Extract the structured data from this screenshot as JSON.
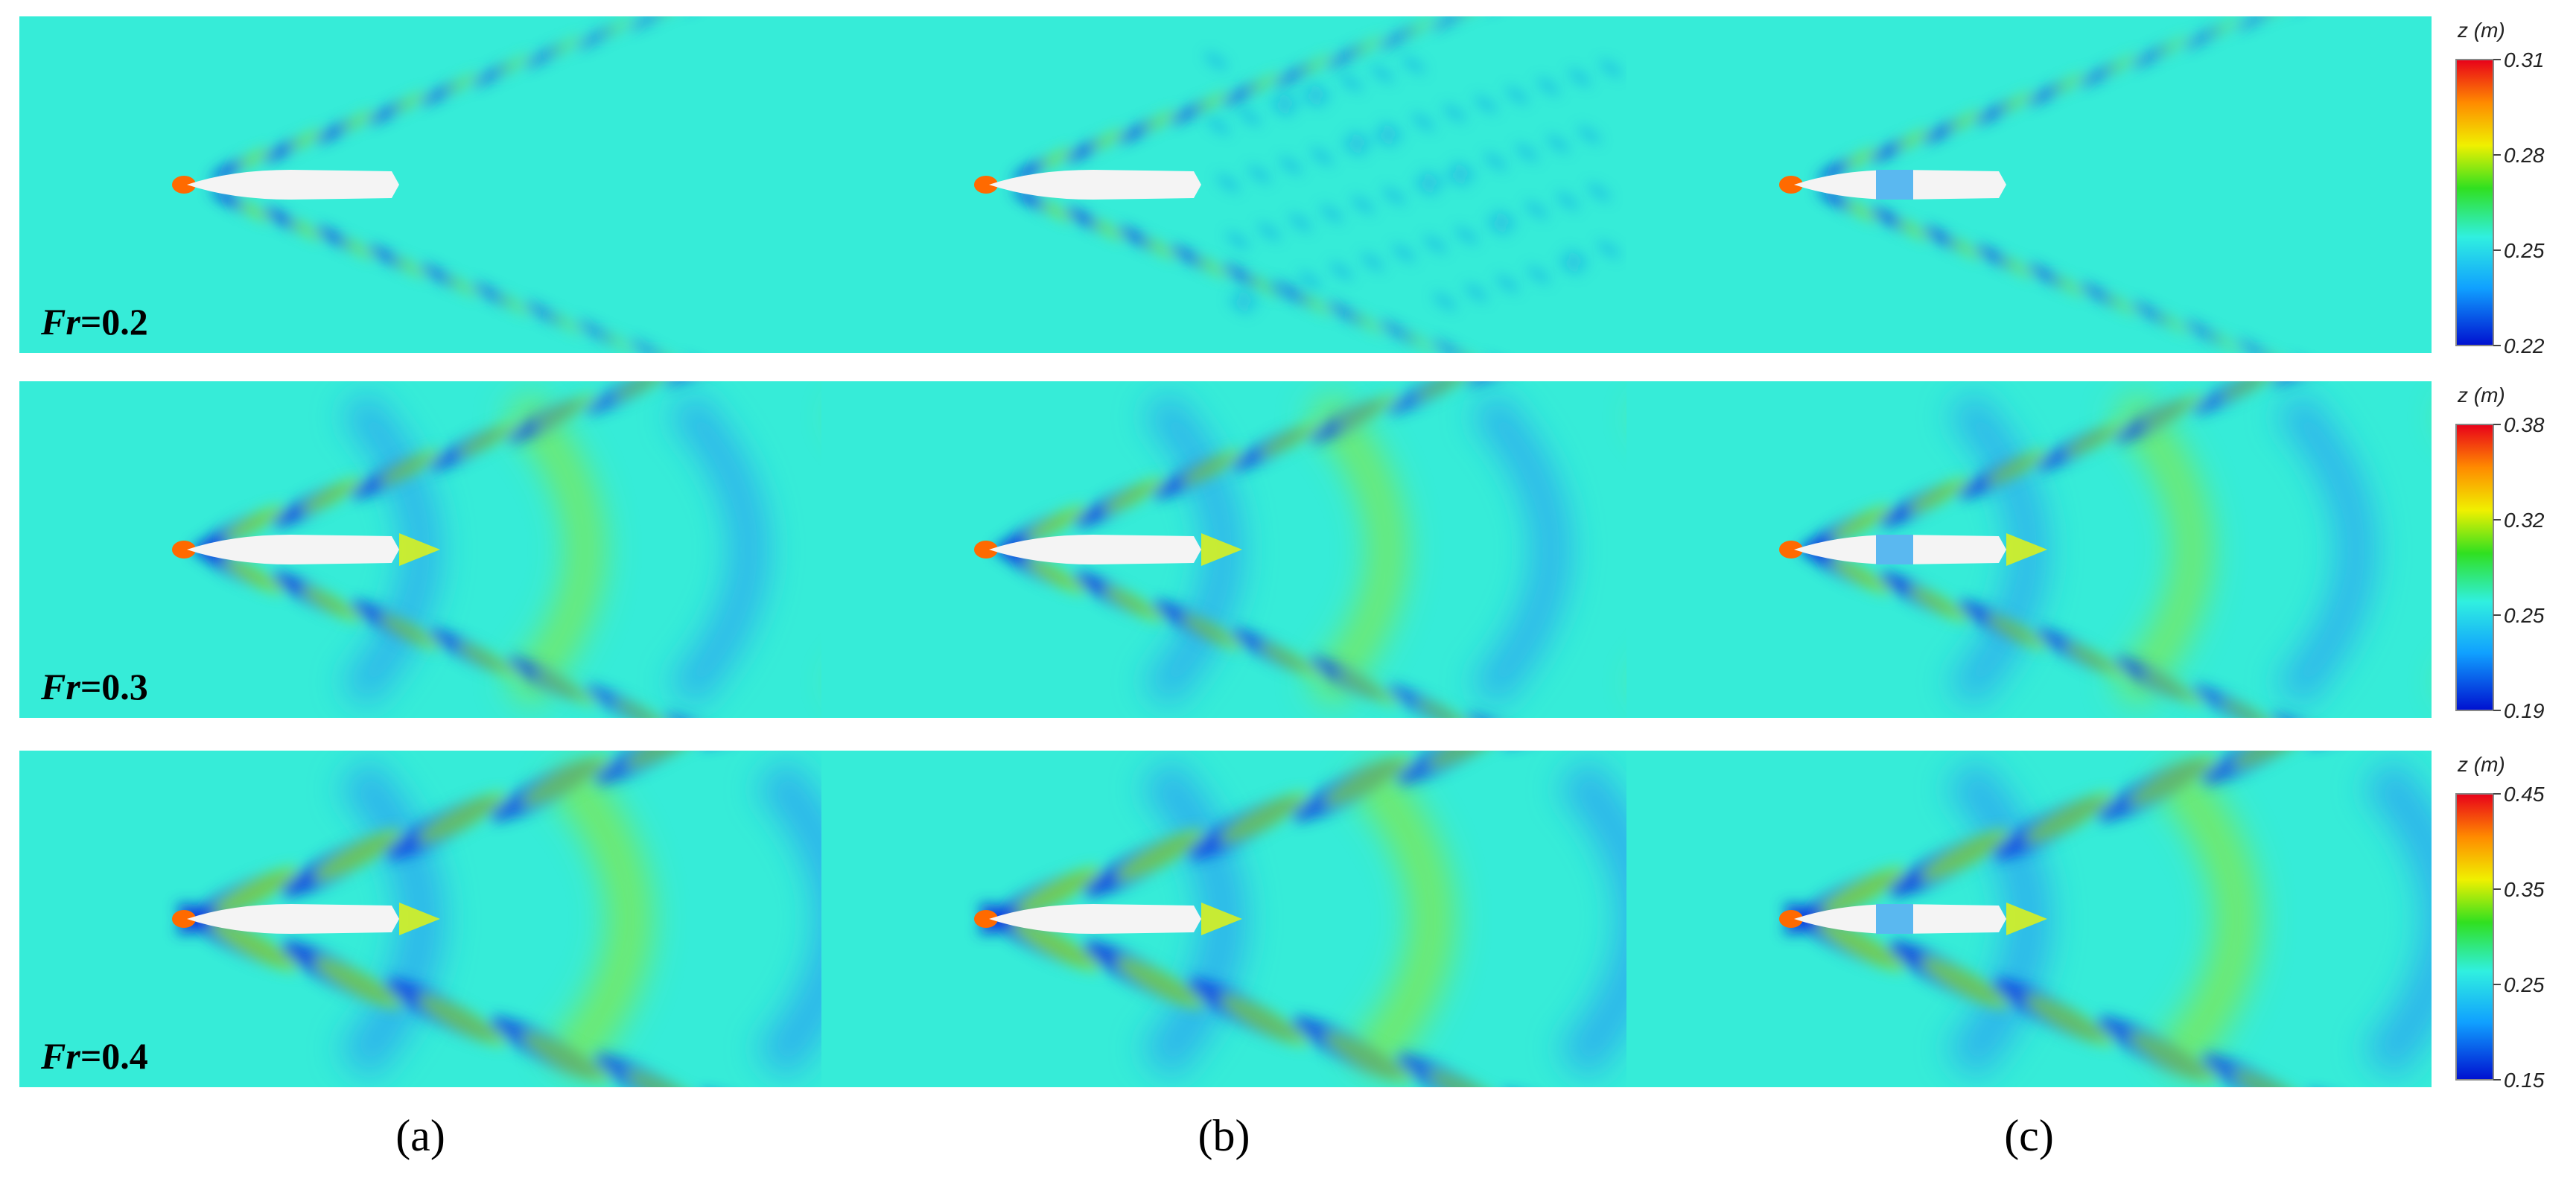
{
  "rows": [
    {
      "symbol": "Fr",
      "value": "=0.2",
      "colorbar": {
        "title": "z (m)",
        "ticks": [
          0.31,
          0.28,
          0.25,
          0.22
        ]
      }
    },
    {
      "symbol": "Fr",
      "value": "=0.3",
      "colorbar": {
        "title": "z (m)",
        "ticks": [
          0.38,
          0.32,
          0.25,
          0.19
        ]
      }
    },
    {
      "symbol": "Fr",
      "value": "=0.4",
      "colorbar": {
        "title": "z (m)",
        "ticks": [
          0.45,
          0.35,
          0.25,
          0.15
        ]
      }
    }
  ],
  "captions": [
    "(a)",
    "(b)",
    "(c)"
  ]
}
